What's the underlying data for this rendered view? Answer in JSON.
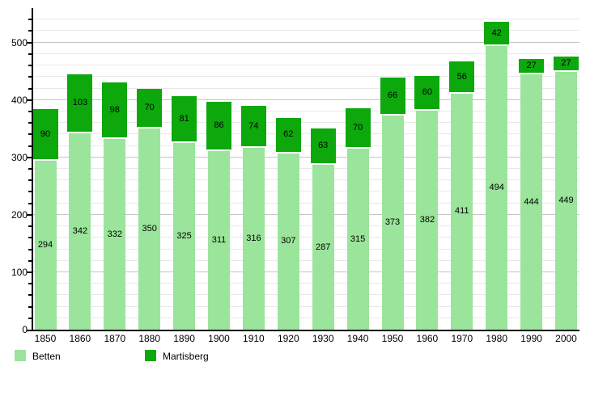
{
  "chart_data": {
    "type": "bar",
    "stacked": true,
    "title": "",
    "xlabel": "",
    "ylabel": "",
    "categories": [
      "1850",
      "1860",
      "1870",
      "1880",
      "1890",
      "1900",
      "1910",
      "1920",
      "1930",
      "1940",
      "1950",
      "1960",
      "1970",
      "1980",
      "1990",
      "2000"
    ],
    "series": [
      {
        "name": "Betten",
        "color": "#9be49b",
        "values": [
          294,
          342,
          332,
          350,
          325,
          311,
          316,
          307,
          287,
          315,
          373,
          382,
          411,
          494,
          444,
          449
        ]
      },
      {
        "name": "Martisberg",
        "color": "#0ca80c",
        "values": [
          90,
          103,
          98,
          70,
          81,
          86,
          74,
          62,
          63,
          70,
          66,
          60,
          56,
          42,
          27,
          27
        ]
      }
    ],
    "ylim": [
      0,
      560
    ],
    "yticks": [
      0,
      100,
      200,
      300,
      400,
      500
    ],
    "minor_grid_step": 20,
    "grid": true,
    "bar_value_labels": true,
    "legend_position": "bottom-left"
  },
  "legend": {
    "items": [
      {
        "label": "Betten",
        "color": "#9be49b"
      },
      {
        "label": "Martisberg",
        "color": "#0ca80c"
      }
    ]
  },
  "colors": {
    "background": "#ffffff",
    "axis": "#000000",
    "grid_minor": "#e9e9e9",
    "grid_major": "#c6c6c6",
    "label_text": "#000000"
  }
}
